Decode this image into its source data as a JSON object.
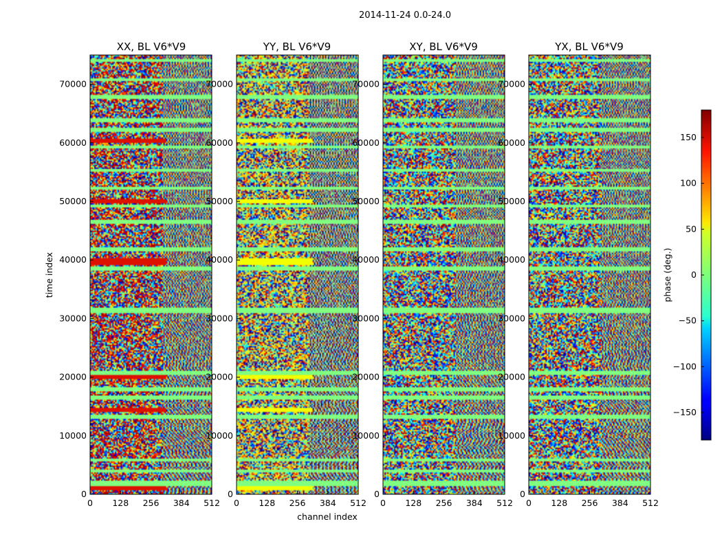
{
  "chart_data": {
    "type": "heatmap",
    "title": "2014-11-24 0.0-24.0",
    "xlabel": "channel index",
    "ylabel": "time index",
    "xlim": [
      0,
      512
    ],
    "ylim": [
      0,
      75000
    ],
    "xticks": [
      0,
      128,
      256,
      384,
      512
    ],
    "yticks": [
      0,
      10000,
      20000,
      30000,
      40000,
      50000,
      60000,
      70000
    ],
    "panels": [
      {
        "title": "XX, BL V6*V9",
        "bias": "red"
      },
      {
        "title": "YY, BL V6*V9",
        "bias": "yellow"
      },
      {
        "title": "XY, BL V6*V9",
        "bias": "none"
      },
      {
        "title": "YX, BL V6*V9",
        "bias": "none"
      }
    ],
    "colorbar": {
      "label": "phase (deg.)",
      "range": [
        -180,
        180
      ],
      "ticks": [
        -150,
        -100,
        -50,
        0,
        50,
        100,
        150
      ],
      "colormap": "jet"
    }
  },
  "colors": {
    "flagged": "#80ff80",
    "red_band": "#dd1100",
    "yellow_band": "#f2ff00"
  }
}
